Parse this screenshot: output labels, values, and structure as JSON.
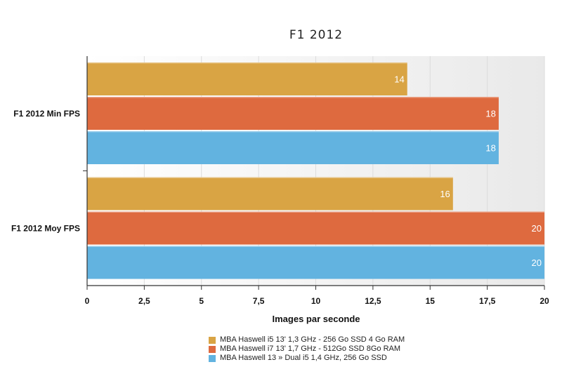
{
  "chart_data": {
    "type": "bar",
    "orientation": "horizontal",
    "title": "F1 2012",
    "xlabel": "Images par seconde",
    "ylabel": "",
    "xlim": [
      0,
      20
    ],
    "x_ticks": [
      "0",
      "2,5",
      "5",
      "7,5",
      "10",
      "12,5",
      "15",
      "17,5",
      "20"
    ],
    "categories": [
      "F1 2012 Min FPS",
      "F1 2012 Moy FPS"
    ],
    "series": [
      {
        "name": "MBA Haswell i5 13' 1,3 GHz - 256 Go SSD 4 Go RAM",
        "color": "#d9a444",
        "values": [
          14,
          16
        ]
      },
      {
        "name": "MBA Haswell i7 13' 1,7 GHz - 512Go SSD 8Go RAM",
        "color": "#de6a3f",
        "values": [
          18,
          20
        ]
      },
      {
        "name": "MBA Haswell 13 » Dual i5 1,4 GHz, 256 Go SSD",
        "color": "#62b3e0",
        "values": [
          18,
          20
        ]
      }
    ],
    "legend_position": "bottom",
    "grid": true
  }
}
